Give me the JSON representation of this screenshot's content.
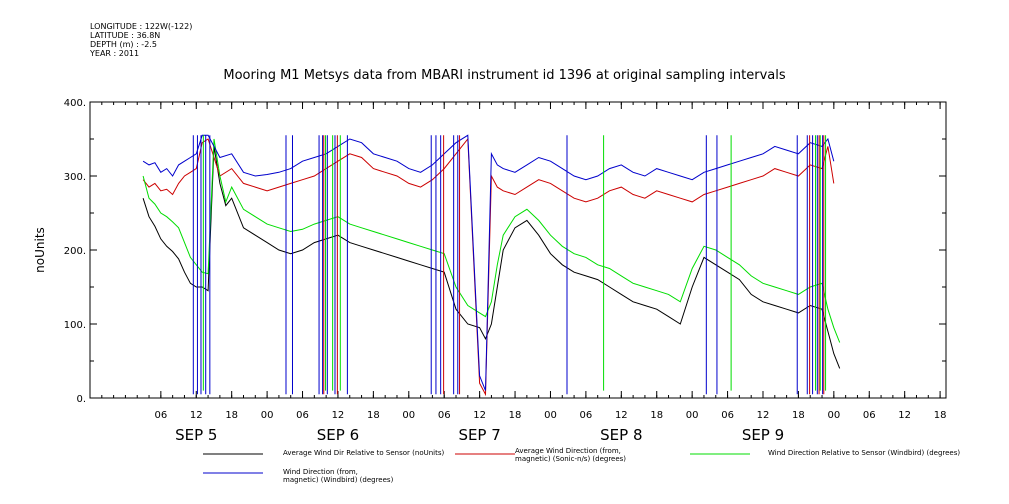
{
  "meta": {
    "longitude": "LONGITUDE : 122W(-122)",
    "latitude": "LATITUDE : 36.8N",
    "depth": "DEPTH (m) : -2.5",
    "year": "YEAR : 2011"
  },
  "chart_data": {
    "type": "line",
    "title": "Mooring M1 Metsys data from MBARI instrument id 1396 at original sampling intervals",
    "ylabel": "noUnits",
    "xlabel": "",
    "ylim": [
      0,
      400
    ],
    "yticks": [
      0,
      100,
      200,
      300,
      400
    ],
    "ytick_labels": [
      "0.",
      "100.",
      "200.",
      "300.",
      "400."
    ],
    "x_unit": "hours from SEP 5 00:00",
    "xlim": [
      -6,
      139
    ],
    "xticks": [
      6,
      12,
      18,
      24,
      30,
      36,
      42,
      48,
      54,
      60,
      66,
      72,
      78,
      84,
      90,
      96,
      102,
      108,
      114,
      120,
      126,
      132,
      138
    ],
    "xtick_labels": [
      "06",
      "12",
      "18",
      "00",
      "06",
      "12",
      "18",
      "00",
      "06",
      "12",
      "18",
      "00",
      "06",
      "12",
      "18",
      "00",
      "06",
      "12",
      "18",
      "00",
      "06",
      "12",
      "18"
    ],
    "day_labels": [
      {
        "label": "SEP  5",
        "hour": 12
      },
      {
        "label": "SEP  6",
        "hour": 36
      },
      {
        "label": "SEP  7",
        "hour": 60
      },
      {
        "label": "SEP  8",
        "hour": 84
      },
      {
        "label": "SEP  9",
        "hour": 108
      }
    ],
    "grid": false,
    "legend_position": "bottom",
    "series": [
      {
        "name": "Average Wind Dir Relative to Sensor (noUnits)",
        "color": "#000000",
        "x": [
          3,
          4,
          5,
          6,
          7,
          8,
          9,
          10,
          11,
          12,
          13,
          14,
          15,
          16,
          17,
          18,
          20,
          22,
          24,
          26,
          28,
          30,
          32,
          34,
          36,
          38,
          40,
          42,
          44,
          46,
          48,
          50,
          52,
          54,
          56,
          58,
          60,
          61,
          62,
          63,
          64,
          66,
          68,
          70,
          72,
          74,
          76,
          78,
          80,
          82,
          84,
          86,
          88,
          90,
          92,
          94,
          96,
          98,
          100,
          102,
          104,
          106,
          108,
          110,
          112,
          114,
          116,
          118,
          119,
          120,
          121
        ],
        "y": [
          270,
          245,
          232,
          215,
          205,
          198,
          188,
          170,
          155,
          150,
          150,
          145,
          340,
          290,
          260,
          270,
          230,
          220,
          210,
          200,
          195,
          200,
          210,
          215,
          220,
          210,
          205,
          200,
          195,
          190,
          185,
          180,
          175,
          170,
          120,
          100,
          95,
          80,
          100,
          150,
          200,
          230,
          240,
          220,
          195,
          180,
          170,
          165,
          160,
          150,
          140,
          130,
          125,
          120,
          110,
          100,
          150,
          190,
          180,
          170,
          160,
          140,
          130,
          125,
          120,
          115,
          125,
          120,
          90,
          60,
          40
        ]
      },
      {
        "name": "Average Wind Direction (from, magnetic) (Sonic-n/s) (degrees)",
        "color": "#cc0000",
        "x": [
          3,
          4,
          5,
          6,
          7,
          8,
          9,
          10,
          11,
          12,
          13,
          14,
          16,
          18,
          20,
          22,
          24,
          26,
          28,
          30,
          32,
          34,
          36,
          38,
          40,
          42,
          44,
          46,
          48,
          50,
          52,
          54,
          56,
          58,
          60,
          61,
          62,
          63,
          64,
          66,
          68,
          70,
          72,
          74,
          76,
          78,
          80,
          82,
          84,
          86,
          88,
          90,
          92,
          94,
          96,
          98,
          100,
          102,
          104,
          106,
          108,
          110,
          112,
          114,
          116,
          118,
          119,
          120
        ],
        "y": [
          295,
          285,
          290,
          280,
          282,
          275,
          290,
          300,
          305,
          310,
          345,
          350,
          300,
          310,
          290,
          285,
          280,
          285,
          290,
          295,
          300,
          310,
          320,
          330,
          325,
          310,
          305,
          300,
          290,
          285,
          295,
          310,
          330,
          350,
          20,
          5,
          300,
          285,
          280,
          275,
          285,
          295,
          290,
          280,
          270,
          265,
          270,
          280,
          285,
          275,
          270,
          280,
          275,
          270,
          265,
          275,
          280,
          285,
          290,
          295,
          300,
          310,
          305,
          300,
          315,
          310,
          340,
          290
        ]
      },
      {
        "name": "Wind Direction Relative to Sensor (Windbird) (degrees)",
        "color": "#00dd00",
        "x": [
          3,
          4,
          5,
          6,
          7,
          8,
          9,
          10,
          11,
          12,
          13,
          14,
          15,
          16,
          17,
          18,
          20,
          22,
          24,
          26,
          28,
          30,
          32,
          34,
          36,
          38,
          40,
          42,
          44,
          46,
          48,
          50,
          52,
          54,
          56,
          58,
          60,
          61,
          62,
          63,
          64,
          66,
          68,
          70,
          72,
          74,
          76,
          78,
          80,
          82,
          84,
          86,
          88,
          90,
          92,
          94,
          96,
          98,
          100,
          102,
          104,
          106,
          108,
          110,
          112,
          114,
          116,
          118,
          119,
          120,
          121
        ],
        "y": [
          300,
          270,
          262,
          250,
          245,
          238,
          230,
          210,
          190,
          180,
          170,
          168,
          350,
          300,
          265,
          285,
          255,
          245,
          235,
          230,
          225,
          228,
          235,
          240,
          245,
          235,
          230,
          225,
          220,
          215,
          210,
          205,
          200,
          195,
          150,
          125,
          115,
          110,
          130,
          180,
          220,
          245,
          255,
          240,
          220,
          205,
          195,
          190,
          180,
          175,
          165,
          155,
          150,
          145,
          140,
          130,
          175,
          205,
          200,
          190,
          180,
          165,
          155,
          150,
          145,
          140,
          150,
          155,
          120,
          95,
          75
        ]
      },
      {
        "name": "Wind Direction (from, magnetic) (Windbird) (degrees)",
        "color": "#0000cc",
        "x": [
          3,
          4,
          5,
          6,
          7,
          8,
          9,
          10,
          11,
          12,
          13,
          14,
          16,
          18,
          20,
          22,
          24,
          26,
          28,
          30,
          32,
          34,
          36,
          38,
          40,
          42,
          44,
          46,
          48,
          50,
          52,
          54,
          56,
          58,
          60,
          61,
          62,
          63,
          64,
          66,
          68,
          70,
          72,
          74,
          76,
          78,
          80,
          82,
          84,
          86,
          88,
          90,
          92,
          94,
          96,
          98,
          100,
          102,
          104,
          106,
          108,
          110,
          112,
          114,
          116,
          118,
          119,
          120
        ],
        "y": [
          320,
          315,
          318,
          305,
          310,
          300,
          315,
          320,
          325,
          330,
          355,
          355,
          325,
          330,
          305,
          300,
          302,
          305,
          310,
          320,
          325,
          330,
          340,
          350,
          345,
          330,
          325,
          320,
          310,
          305,
          315,
          330,
          345,
          355,
          30,
          10,
          330,
          315,
          310,
          305,
          315,
          325,
          320,
          310,
          300,
          295,
          300,
          310,
          315,
          305,
          300,
          310,
          305,
          300,
          295,
          305,
          310,
          315,
          320,
          325,
          330,
          340,
          335,
          330,
          345,
          340,
          350,
          320
        ]
      }
    ],
    "spikes": [
      {
        "series": 3,
        "x": [
          11.5,
          12.2,
          12.8,
          13.6,
          14.3,
          27.2,
          28.3,
          32.8,
          33.4,
          34.2,
          35.5,
          37.6,
          51.8,
          52.6,
          53.4,
          55.6,
          56.3,
          74.8,
          98.4,
          100.2,
          113.8,
          115.5,
          116.4,
          117.2,
          118.1
        ],
        "low": 5,
        "high": 355
      },
      {
        "series": 2,
        "x": [
          13.2,
          33.9,
          35.1,
          36.4,
          81.0,
          102.6,
          116.9,
          117.7,
          118.6
        ],
        "low": 10,
        "high": 355
      },
      {
        "series": 1,
        "x": [
          33.6,
          35.9,
          53.9,
          56.6,
          115.9,
          117.5,
          118.3
        ],
        "low": 5,
        "high": 355
      }
    ]
  },
  "legend": [
    {
      "label": "Average Wind Dir Relative to Sensor (noUnits)",
      "color": "#000000"
    },
    {
      "label": "Average Wind Direction (from,\nmagnetic) (Sonic-n/s) (degrees)",
      "color": "#cc0000"
    },
    {
      "label": "Wind Direction Relative to Sensor (Windbird) (degrees)",
      "color": "#00dd00"
    },
    {
      "label": "Wind Direction (from,\nmagnetic) (Windbird) (degrees)",
      "color": "#0000cc"
    }
  ]
}
